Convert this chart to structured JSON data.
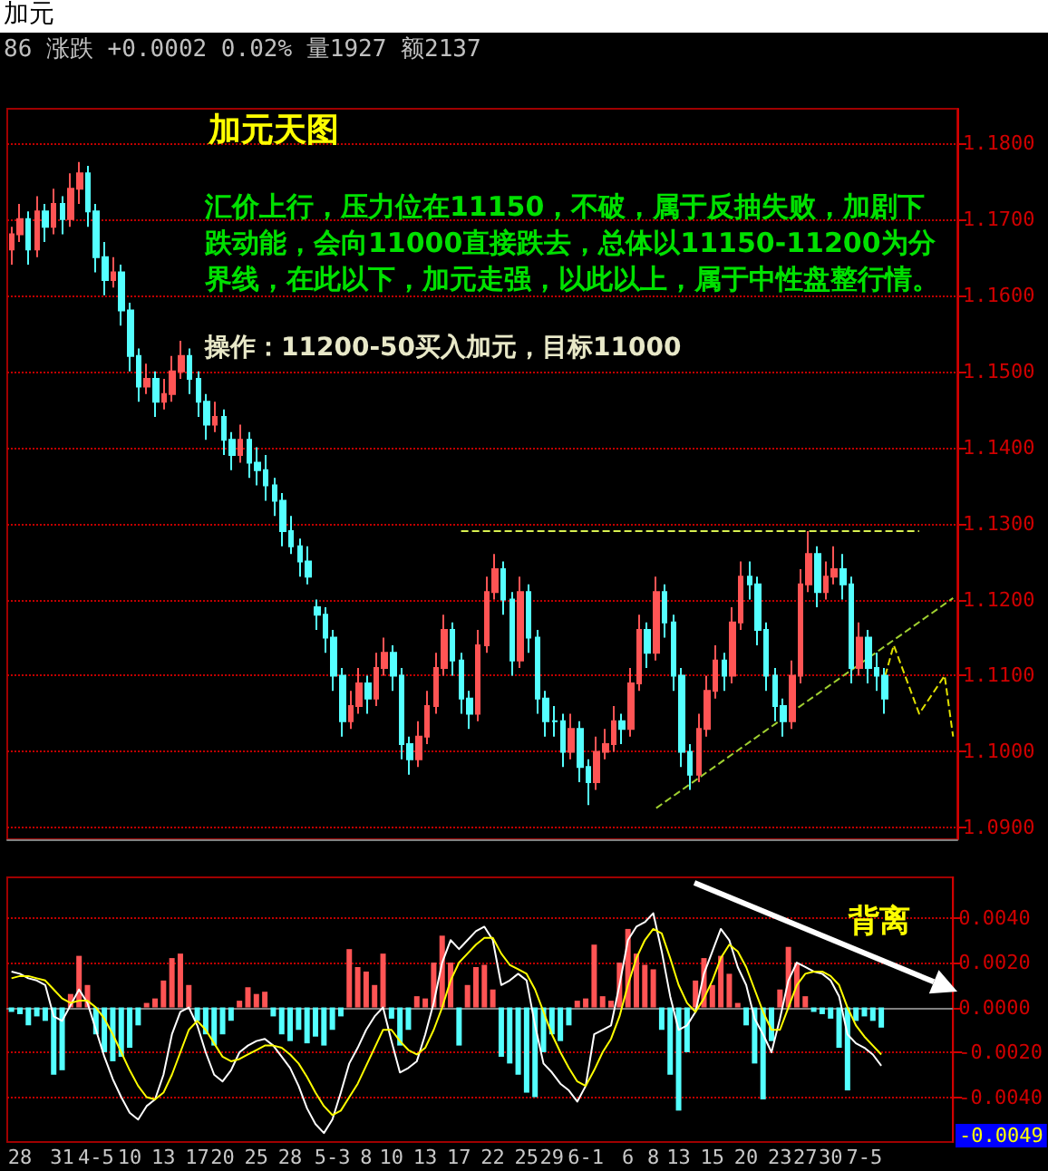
{
  "chart_data": [
    {
      "type": "candlestick",
      "title": "加元",
      "subtitle": "86 涨跌 +0.0002 0.02% 量1927 额2137",
      "annotations": [
        "加元天图",
        "汇价上行，压力位在11150，不破，属于反抽失败，加剧下跌动能，会向11000直接跌去，总体以11150-11200为分界线，在此以下，加元走强，以此以上，属于中性盘整行情。",
        "操作：11200-50买入加元，目标11000"
      ],
      "categories": [
        null,
        null,
        null,
        null,
        null,
        null,
        null,
        null,
        null,
        null,
        null,
        null,
        null,
        null,
        null,
        null,
        null,
        null,
        null,
        null,
        null,
        null,
        null,
        null,
        null,
        null,
        null,
        null,
        null,
        null,
        null,
        null,
        null,
        null,
        null,
        null,
        null,
        null,
        null,
        null,
        null,
        null,
        null,
        null,
        null,
        null,
        null,
        null,
        null,
        null,
        null,
        null,
        null,
        null,
        null,
        null,
        null,
        null,
        null,
        null,
        null,
        null,
        null,
        null,
        null,
        null,
        null,
        null,
        null,
        null,
        null,
        null,
        null,
        null,
        null,
        null,
        null,
        null,
        null,
        null,
        null,
        null,
        null,
        null,
        null,
        null,
        null,
        null,
        null,
        null,
        null,
        null,
        null,
        null,
        null,
        null,
        null,
        null,
        null,
        null,
        null,
        null,
        null,
        null,
        null,
        null,
        null,
        null,
        null,
        null,
        null,
        null
      ],
      "ylim": [
        1.0885,
        1.1845
      ],
      "yticks": [
        {
          "value": 1.09,
          "label": "1.0900"
        },
        {
          "value": 1.1,
          "label": "1.1000"
        },
        {
          "value": 1.11,
          "label": "1.1100"
        },
        {
          "value": 1.12,
          "label": "1.1200"
        },
        {
          "value": 1.13,
          "label": "1.1300"
        },
        {
          "value": 1.14,
          "label": "1.1400"
        },
        {
          "value": 1.15,
          "label": "1.1500"
        },
        {
          "value": 1.16,
          "label": "1.1600"
        },
        {
          "value": 1.17,
          "label": "1.1700"
        },
        {
          "value": 1.18,
          "label": "1.1800"
        }
      ],
      "grid": "y",
      "tick_labels": "y",
      "series": [
        {
          "ohlc": [
            [
              1.166,
              1.169,
              1.164,
              1.168
            ],
            [
              1.168,
              1.172,
              1.167,
              1.17
            ],
            [
              1.17,
              1.171,
              1.164,
              1.166
            ],
            [
              1.166,
              1.173,
              1.165,
              1.171
            ],
            [
              1.171,
              1.172,
              1.167,
              1.169
            ],
            [
              1.169,
              1.174,
              1.168,
              1.172
            ],
            [
              1.172,
              1.173,
              1.168,
              1.17
            ],
            [
              1.17,
              1.176,
              1.169,
              1.174
            ],
            [
              1.174,
              1.1775,
              1.172,
              1.176
            ],
            [
              1.176,
              1.177,
              1.169,
              1.171
            ],
            [
              1.171,
              1.172,
              1.163,
              1.165
            ],
            [
              1.165,
              1.167,
              1.16,
              1.162
            ],
            [
              1.162,
              1.165,
              1.161,
              1.163
            ],
            [
              1.163,
              1.164,
              1.156,
              1.158
            ],
            [
              1.158,
              1.159,
              1.15,
              1.152
            ],
            [
              1.152,
              1.153,
              1.146,
              1.148
            ],
            [
              1.148,
              1.151,
              1.147,
              1.149
            ],
            [
              1.149,
              1.15,
              1.144,
              1.146
            ],
            [
              1.146,
              1.149,
              1.145,
              1.147
            ],
            [
              1.147,
              1.152,
              1.146,
              1.15
            ],
            [
              1.15,
              1.154,
              1.149,
              1.152
            ],
            [
              1.152,
              1.153,
              1.147,
              1.149
            ],
            [
              1.149,
              1.15,
              1.144,
              1.146
            ],
            [
              1.146,
              1.147,
              1.141,
              1.143
            ],
            [
              1.143,
              1.146,
              1.142,
              1.144
            ],
            [
              1.144,
              1.145,
              1.139,
              1.141
            ],
            [
              1.141,
              1.142,
              1.137,
              1.139
            ],
            [
              1.139,
              1.143,
              1.138,
              1.141
            ],
            [
              1.141,
              1.142,
              1.136,
              1.138
            ],
            [
              1.138,
              1.14,
              1.135,
              1.137
            ],
            [
              1.137,
              1.139,
              1.133,
              1.135
            ],
            [
              1.135,
              1.136,
              1.131,
              1.133
            ],
            [
              1.133,
              1.134,
              1.127,
              1.129
            ],
            [
              1.129,
              1.131,
              1.126,
              1.127
            ],
            [
              1.127,
              1.128,
              1.123,
              1.125
            ],
            [
              1.125,
              1.127,
              1.122,
              1.123
            ],
            [
              1.119,
              1.12,
              1.116,
              1.118
            ],
            [
              1.118,
              1.119,
              1.113,
              1.115
            ],
            [
              1.115,
              1.116,
              1.108,
              1.11
            ],
            [
              1.11,
              1.111,
              1.102,
              1.104
            ],
            [
              1.104,
              1.108,
              1.103,
              1.106
            ],
            [
              1.106,
              1.111,
              1.105,
              1.109
            ],
            [
              1.109,
              1.11,
              1.105,
              1.107
            ],
            [
              1.107,
              1.113,
              1.106,
              1.111
            ],
            [
              1.111,
              1.115,
              1.11,
              1.113
            ],
            [
              1.113,
              1.114,
              1.108,
              1.11
            ],
            [
              1.11,
              1.111,
              1.099,
              1.101
            ],
            [
              1.101,
              1.102,
              1.097,
              1.099
            ],
            [
              1.099,
              1.104,
              1.098,
              1.102
            ],
            [
              1.102,
              1.108,
              1.101,
              1.106
            ],
            [
              1.106,
              1.113,
              1.105,
              1.111
            ],
            [
              1.111,
              1.118,
              1.11,
              1.116
            ],
            [
              1.116,
              1.117,
              1.11,
              1.112
            ],
            [
              1.112,
              1.113,
              1.105,
              1.107
            ],
            [
              1.107,
              1.108,
              1.103,
              1.105
            ],
            [
              1.105,
              1.116,
              1.104,
              1.114
            ],
            [
              1.114,
              1.123,
              1.113,
              1.121
            ],
            [
              1.121,
              1.126,
              1.12,
              1.124
            ],
            [
              1.124,
              1.125,
              1.118,
              1.12
            ],
            [
              1.12,
              1.121,
              1.11,
              1.112
            ],
            [
              1.112,
              1.123,
              1.111,
              1.121
            ],
            [
              1.121,
              1.122,
              1.113,
              1.115
            ],
            [
              1.115,
              1.116,
              1.105,
              1.107
            ],
            [
              1.107,
              1.108,
              1.102,
              1.104
            ],
            [
              1.104,
              1.106,
              1.102,
              1.104
            ],
            [
              1.104,
              1.105,
              1.098,
              1.1
            ],
            [
              1.1,
              1.105,
              1.099,
              1.103
            ],
            [
              1.103,
              1.104,
              1.096,
              1.098
            ],
            [
              1.098,
              1.099,
              1.093,
              1.096
            ],
            [
              1.096,
              1.102,
              1.095,
              1.1
            ],
            [
              1.1,
              1.103,
              1.099,
              1.101
            ],
            [
              1.101,
              1.106,
              1.1,
              1.104
            ],
            [
              1.104,
              1.105,
              1.101,
              1.103
            ],
            [
              1.103,
              1.111,
              1.102,
              1.109
            ],
            [
              1.109,
              1.118,
              1.108,
              1.116
            ],
            [
              1.116,
              1.117,
              1.111,
              1.113
            ],
            [
              1.113,
              1.123,
              1.112,
              1.121
            ],
            [
              1.121,
              1.122,
              1.115,
              1.117
            ],
            [
              1.117,
              1.118,
              1.108,
              1.11
            ],
            [
              1.11,
              1.111,
              1.098,
              1.1
            ],
            [
              1.1,
              1.101,
              1.095,
              1.097
            ],
            [
              1.097,
              1.105,
              1.096,
              1.103
            ],
            [
              1.103,
              1.11,
              1.102,
              1.108
            ],
            [
              1.108,
              1.114,
              1.107,
              1.112
            ],
            [
              1.112,
              1.113,
              1.108,
              1.11
            ],
            [
              1.11,
              1.119,
              1.109,
              1.117
            ],
            [
              1.117,
              1.125,
              1.116,
              1.123
            ],
            [
              1.123,
              1.125,
              1.12,
              1.122
            ],
            [
              1.122,
              1.123,
              1.114,
              1.116
            ],
            [
              1.116,
              1.117,
              1.108,
              1.11
            ],
            [
              1.11,
              1.111,
              1.104,
              1.106
            ],
            [
              1.106,
              1.107,
              1.102,
              1.104
            ],
            [
              1.104,
              1.112,
              1.103,
              1.11
            ],
            [
              1.11,
              1.124,
              1.109,
              1.122
            ],
            [
              1.122,
              1.129,
              1.121,
              1.126
            ],
            [
              1.126,
              1.127,
              1.119,
              1.121
            ],
            [
              1.121,
              1.125,
              1.12,
              1.123
            ],
            [
              1.123,
              1.127,
              1.122,
              1.124
            ],
            [
              1.124,
              1.126,
              1.12,
              1.122
            ],
            [
              1.122,
              1.123,
              1.109,
              1.111
            ],
            [
              1.111,
              1.117,
              1.11,
              1.115
            ],
            [
              1.115,
              1.116,
              1.109,
              1.111
            ],
            [
              1.111,
              1.113,
              1.108,
              1.11
            ],
            [
              1.11,
              1.111,
              1.105,
              1.107
            ],
            null,
            null,
            null,
            null,
            null,
            null,
            null,
            null
          ],
          "colors": [
            "#ff5454",
            "#ff5454",
            "#54ffff",
            "#ff5454",
            "#54ffff",
            "#ff5454",
            "#54ffff",
            "#ff5454",
            "#ff5454",
            "#54ffff",
            "#54ffff",
            "#54ffff",
            "#ff5454",
            "#54ffff",
            "#54ffff",
            "#54ffff",
            "#ff5454",
            "#54ffff",
            "#ff5454",
            "#ff5454",
            "#ff5454",
            "#54ffff",
            "#54ffff",
            "#54ffff",
            "#ff5454",
            "#54ffff",
            "#54ffff",
            "#ff5454",
            "#54ffff",
            "#54ffff",
            "#54ffff",
            "#54ffff",
            "#54ffff",
            "#54ffff",
            "#54ffff",
            "#54ffff",
            "#54ffff",
            "#54ffff",
            "#54ffff",
            "#54ffff",
            "#ff5454",
            "#ff5454",
            "#54ffff",
            "#ff5454",
            "#ff5454",
            "#54ffff",
            "#54ffff",
            "#54ffff",
            "#ff5454",
            "#ff5454",
            "#ff5454",
            "#ff5454",
            "#54ffff",
            "#54ffff",
            "#54ffff",
            "#ff5454",
            "#ff5454",
            "#ff5454",
            "#54ffff",
            "#54ffff",
            "#ff5454",
            "#54ffff",
            "#54ffff",
            "#54ffff",
            "#54ffff",
            "#54ffff",
            "#ff5454",
            "#54ffff",
            "#54ffff",
            "#ff5454",
            "#ff5454",
            "#ff5454",
            "#54ffff",
            "#ff5454",
            "#ff5454",
            "#54ffff",
            "#ff5454",
            "#54ffff",
            "#54ffff",
            "#54ffff",
            "#54ffff",
            "#ff5454",
            "#ff5454",
            "#ff5454",
            "#54ffff",
            "#ff5454",
            "#ff5454",
            "#54ffff",
            "#54ffff",
            "#54ffff",
            "#54ffff",
            "#54ffff",
            "#ff5454",
            "#ff5454",
            "#ff5454",
            "#54ffff",
            "#ff5454",
            "#ff5454",
            "#54ffff",
            "#54ffff",
            "#ff5454",
            "#54ffff",
            "#54ffff",
            "#54ffff",
            null,
            null,
            null,
            null,
            null,
            null,
            null,
            null
          ]
        },
        {
          "type": "line",
          "color": "#d8f050",
          "line_style": "dashed",
          "values": [
            null,
            null,
            null,
            null,
            null,
            null,
            null,
            null,
            null,
            null,
            null,
            null,
            null,
            null,
            null,
            null,
            null,
            null,
            null,
            null,
            null,
            null,
            null,
            null,
            null,
            null,
            null,
            null,
            null,
            null,
            null,
            null,
            null,
            null,
            null,
            null,
            null,
            null,
            null,
            null,
            null,
            null,
            null,
            null,
            null,
            null,
            null,
            null,
            null,
            null,
            null,
            null,
            null,
            1.129,
            null,
            null,
            null,
            null,
            null,
            null,
            null,
            null,
            null,
            null,
            null,
            null,
            null,
            null,
            null,
            null,
            null,
            null,
            null,
            null,
            null,
            null,
            null,
            null,
            null,
            null,
            null,
            null,
            null,
            null,
            null,
            null,
            null,
            null,
            null,
            null,
            null,
            null,
            null,
            null,
            null,
            null,
            null,
            null,
            null,
            null,
            null,
            null,
            null,
            null,
            null,
            null,
            null,
            1.129,
            null,
            null,
            null,
            null
          ]
        },
        {
          "type": "line",
          "color": "#a0d030",
          "line_style": "dashed",
          "values": [
            null,
            null,
            null,
            null,
            null,
            null,
            null,
            null,
            null,
            null,
            null,
            null,
            null,
            null,
            null,
            null,
            null,
            null,
            null,
            null,
            null,
            null,
            null,
            null,
            null,
            null,
            null,
            null,
            null,
            null,
            null,
            null,
            null,
            null,
            null,
            null,
            null,
            null,
            null,
            null,
            null,
            null,
            null,
            null,
            null,
            null,
            null,
            null,
            null,
            null,
            null,
            null,
            null,
            null,
            null,
            null,
            null,
            null,
            null,
            null,
            null,
            null,
            null,
            null,
            null,
            null,
            null,
            null,
            null,
            null,
            null,
            null,
            null,
            null,
            null,
            null,
            1.0926,
            null,
            null,
            null,
            null,
            null,
            null,
            null,
            null,
            null,
            null,
            null,
            null,
            null,
            null,
            null,
            null,
            null,
            null,
            null,
            null,
            null,
            null,
            null,
            null,
            null,
            null,
            null,
            null,
            null,
            null,
            null,
            null,
            null,
            null,
            1.1202
          ]
        },
        {
          "type": "line",
          "color": "#e0e000",
          "line_style": "dashed",
          "values": [
            null,
            null,
            null,
            null,
            null,
            null,
            null,
            null,
            null,
            null,
            null,
            null,
            null,
            null,
            null,
            null,
            null,
            null,
            null,
            null,
            null,
            null,
            null,
            null,
            null,
            null,
            null,
            null,
            null,
            null,
            null,
            null,
            null,
            null,
            null,
            null,
            null,
            null,
            null,
            null,
            null,
            null,
            null,
            null,
            null,
            null,
            null,
            null,
            null,
            null,
            null,
            null,
            null,
            null,
            null,
            null,
            null,
            null,
            null,
            null,
            null,
            null,
            null,
            null,
            null,
            null,
            null,
            null,
            null,
            null,
            null,
            null,
            null,
            null,
            null,
            null,
            null,
            null,
            null,
            null,
            null,
            null,
            null,
            null,
            null,
            null,
            null,
            null,
            null,
            null,
            null,
            null,
            null,
            null,
            null,
            null,
            null,
            null,
            null,
            null,
            null,
            null,
            null,
            1.11,
            1.114,
            null,
            null,
            1.105,
            null,
            null,
            1.11,
            1.102
          ]
        }
      ]
    },
    {
      "type": "bar",
      "annotations": [
        "背离",
        "-0.0049"
      ],
      "categories": [
        null,
        "28",
        null,
        null,
        null,
        null,
        "31",
        null,
        null,
        null,
        "4-5",
        null,
        null,
        null,
        "10",
        null,
        null,
        null,
        "13",
        null,
        null,
        null,
        "17",
        null,
        null,
        "20",
        null,
        null,
        null,
        "25",
        null,
        null,
        null,
        "28",
        null,
        null,
        null,
        null,
        "5-3",
        null,
        null,
        null,
        "8",
        null,
        null,
        "10",
        null,
        null,
        null,
        "13",
        null,
        null,
        null,
        "17",
        null,
        null,
        null,
        "22",
        null,
        null,
        null,
        "25",
        null,
        null,
        "29",
        null,
        null,
        null,
        "6-1",
        null,
        null,
        null,
        null,
        "6",
        null,
        null,
        "8",
        null,
        null,
        "13",
        null,
        null,
        null,
        "15",
        null,
        null,
        null,
        "20",
        null,
        null,
        null,
        "23",
        null,
        null,
        "27",
        null,
        null,
        "30",
        null,
        null,
        null,
        "7-5",
        null,
        null,
        null,
        null,
        null,
        null,
        null,
        null,
        null,
        null
      ],
      "ylim": [
        -0.006,
        0.0058
      ],
      "yticks": [
        {
          "value": -0.004,
          "label": "-0.0040"
        },
        {
          "value": -0.002,
          "label": "-0.0020"
        },
        {
          "value": 0,
          "label": "0.0000"
        },
        {
          "value": 0.002,
          "label": "0.0020"
        },
        {
          "value": 0.004,
          "label": "0.0040"
        }
      ],
      "grid": "y",
      "series": [
        {
          "values": [
            -0.0002,
            -0.0003,
            -0.0008,
            -0.0004,
            -0.0006,
            -0.003,
            -0.0028,
            0.0006,
            0.0023,
            0.001,
            -0.0012,
            -0.002,
            -0.0024,
            -0.0022,
            -0.0018,
            -0.0008,
            0.0002,
            0.0004,
            0.0012,
            0.0022,
            0.0024,
            0.001,
            -0.0006,
            -0.0012,
            -0.0017,
            -0.0012,
            -0.0006,
            0.0003,
            0.0009,
            0.0006,
            0.0007,
            -0.0004,
            -0.0012,
            -0.0015,
            -0.001,
            -0.0016,
            -0.0013,
            -0.0017,
            -0.001,
            -0.0004,
            0.0026,
            0.0018,
            0.0016,
            0.001,
            0.0024,
            -0.0005,
            -0.0017,
            -0.001,
            0.0005,
            0.0004,
            0.002,
            0.0032,
            0.002,
            -0.0017,
            0.001,
            0.0018,
            0.0019,
            0.0008,
            -0.0022,
            -0.0025,
            -0.003,
            -0.0038,
            -0.004,
            -0.002,
            -0.0012,
            -0.0015,
            -0.0008,
            0.0003,
            0.0004,
            0.0028,
            0.0005,
            0.0003,
            0.002,
            0.0035,
            0.0024,
            0.0019,
            0.0017,
            -0.001,
            -0.003,
            -0.0046,
            -0.002,
            0.0012,
            0.0022,
            0.001,
            0.0023,
            0.0015,
            0.0002,
            -0.0008,
            -0.0025,
            -0.0041,
            -0.0015,
            0.0008,
            0.0027,
            0.002,
            0.0005,
            -0.0002,
            -0.0003,
            -0.0005,
            -0.0018,
            -0.0037,
            -0.0006,
            -0.0004,
            -0.0006,
            -0.0009,
            null,
            null,
            null,
            null,
            null,
            null,
            null,
            null
          ],
          "colors": [
            "#54ffff",
            "#54ffff",
            "#54ffff",
            "#54ffff",
            "#54ffff",
            "#54ffff",
            "#54ffff",
            "#ff5454",
            "#ff5454",
            "#ff5454",
            "#54ffff",
            "#54ffff",
            "#54ffff",
            "#54ffff",
            "#54ffff",
            "#54ffff",
            "#ff5454",
            "#ff5454",
            "#ff5454",
            "#ff5454",
            "#ff5454",
            "#ff5454",
            "#54ffff",
            "#54ffff",
            "#54ffff",
            "#54ffff",
            "#54ffff",
            "#ff5454",
            "#ff5454",
            "#ff5454",
            "#ff5454",
            "#54ffff",
            "#54ffff",
            "#54ffff",
            "#54ffff",
            "#54ffff",
            "#54ffff",
            "#54ffff",
            "#54ffff",
            "#54ffff",
            "#ff5454",
            "#ff5454",
            "#ff5454",
            "#ff5454",
            "#ff5454",
            "#54ffff",
            "#54ffff",
            "#54ffff",
            "#ff5454",
            "#ff5454",
            "#ff5454",
            "#ff5454",
            "#ff5454",
            "#54ffff",
            "#ff5454",
            "#ff5454",
            "#ff5454",
            "#ff5454",
            "#54ffff",
            "#54ffff",
            "#54ffff",
            "#54ffff",
            "#54ffff",
            "#54ffff",
            "#54ffff",
            "#54ffff",
            "#54ffff",
            "#ff5454",
            "#ff5454",
            "#ff5454",
            "#ff5454",
            "#ff5454",
            "#ff5454",
            "#ff5454",
            "#ff5454",
            "#ff5454",
            "#ff5454",
            "#54ffff",
            "#54ffff",
            "#54ffff",
            "#54ffff",
            "#ff5454",
            "#ff5454",
            "#ff5454",
            "#ff5454",
            "#ff5454",
            "#ff5454",
            "#54ffff",
            "#54ffff",
            "#54ffff",
            "#54ffff",
            "#ff5454",
            "#ff5454",
            "#ff5454",
            "#ff5454",
            "#54ffff",
            "#54ffff",
            "#54ffff",
            "#54ffff",
            "#54ffff",
            "#54ffff",
            "#54ffff",
            "#54ffff",
            "#54ffff",
            null,
            null,
            null,
            null,
            null,
            null,
            null,
            null
          ]
        },
        {
          "type": "line",
          "color": "#ffffff",
          "values": [
            0.0016,
            0.0015,
            0.0013,
            0.0012,
            0.001,
            -0.0004,
            -0.0006,
            0.0001,
            0.0008,
            0.0002,
            -0.001,
            -0.0022,
            -0.0032,
            -0.004,
            -0.0047,
            -0.005,
            -0.0044,
            -0.0041,
            -0.003,
            -0.0012,
            -0.0002,
            0.0,
            -0.0008,
            -0.002,
            -0.003,
            -0.0033,
            -0.0028,
            -0.002,
            -0.0017,
            -0.0015,
            -0.0014,
            -0.0017,
            -0.0022,
            -0.0027,
            -0.0035,
            -0.0045,
            -0.0052,
            -0.0056,
            -0.005,
            -0.0038,
            -0.0025,
            -0.0018,
            -0.001,
            -0.0004,
            0.0,
            -0.0015,
            -0.0029,
            -0.0027,
            -0.0024,
            -0.0012,
            0.0002,
            0.002,
            0.003,
            0.0026,
            0.003,
            0.0034,
            0.0036,
            0.003,
            0.001,
            0.0012,
            0.0015,
            0.0012,
            -0.0008,
            -0.0025,
            -0.0029,
            -0.0034,
            -0.0037,
            -0.0042,
            -0.0035,
            -0.0012,
            -0.001,
            -0.0008,
            0.001,
            0.003,
            0.0036,
            0.0038,
            0.0042,
            0.0025,
            0.0005,
            -0.001,
            -0.0008,
            -0.0002,
            0.0015,
            0.0025,
            0.0035,
            0.003,
            0.0018,
            0.001,
            -0.0005,
            -0.0012,
            -0.002,
            -0.0005,
            0.0012,
            0.002,
            0.0018,
            0.0016,
            0.0015,
            0.0012,
            0.0005,
            -0.0012,
            -0.0016,
            -0.0018,
            -0.0021,
            -0.0026,
            null,
            null,
            null,
            null,
            null,
            null,
            null,
            null
          ]
        },
        {
          "type": "line",
          "color": "#ffff00",
          "values": [
            0.0013,
            0.0014,
            0.0014,
            0.0013,
            0.0012,
            0.0008,
            0.0004,
            0.0002,
            0.0003,
            0.0003,
            0.0,
            -0.0005,
            -0.0012,
            -0.002,
            -0.0028,
            -0.0035,
            -0.004,
            -0.0041,
            -0.0038,
            -0.003,
            -0.002,
            -0.001,
            -0.0006,
            -0.001,
            -0.0016,
            -0.0022,
            -0.0024,
            -0.0023,
            -0.0021,
            -0.0019,
            -0.0017,
            -0.0017,
            -0.0018,
            -0.0021,
            -0.0025,
            -0.0031,
            -0.0038,
            -0.0044,
            -0.0048,
            -0.0046,
            -0.004,
            -0.0034,
            -0.0026,
            -0.0018,
            -0.001,
            -0.001,
            -0.0015,
            -0.0019,
            -0.0021,
            -0.0018,
            -0.001,
            0.0,
            0.0012,
            0.002,
            0.0024,
            0.0028,
            0.0031,
            0.0031,
            0.0024,
            0.0019,
            0.0017,
            0.0015,
            0.0008,
            -0.0002,
            -0.0012,
            -0.002,
            -0.0027,
            -0.0033,
            -0.0035,
            -0.0028,
            -0.002,
            -0.0014,
            -0.0004,
            0.001,
            0.0022,
            0.003,
            0.0035,
            0.0033,
            0.0022,
            0.001,
            0.0002,
            -0.0002,
            0.0004,
            0.0012,
            0.0022,
            0.0028,
            0.0025,
            0.0018,
            0.0008,
            -0.0002,
            -0.001,
            -0.001,
            0.0,
            0.001,
            0.0015,
            0.0016,
            0.0016,
            0.0014,
            0.001,
            0.0,
            -0.0008,
            -0.0013,
            -0.0017,
            -0.0021,
            null,
            null,
            null,
            null,
            null,
            null,
            null,
            null
          ]
        }
      ]
    }
  ]
}
